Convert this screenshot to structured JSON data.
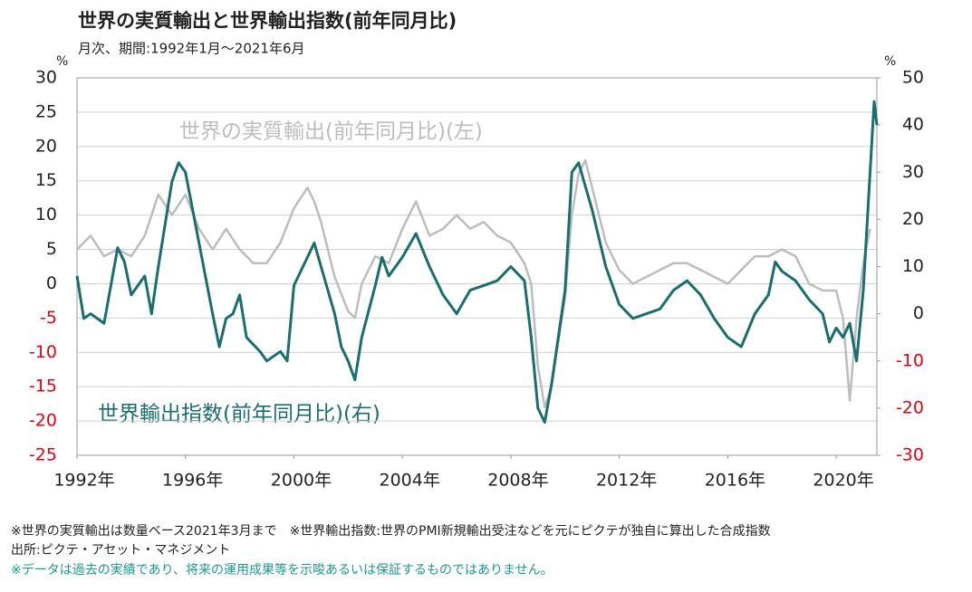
{
  "chart_data": {
    "type": "line",
    "title": "世界の実質輸出と世界輸出指数(前年同月比)",
    "subtitle": "月次、期間:1992年1月～2021年6月",
    "y_unit": "%",
    "y2_unit": "%",
    "xlim": [
      1992,
      2021.5
    ],
    "xticks": [
      {
        "value": 1992,
        "label": "1992年"
      },
      {
        "value": 1996,
        "label": "1996年"
      },
      {
        "value": 2000,
        "label": "2000年"
      },
      {
        "value": 2004,
        "label": "2004年"
      },
      {
        "value": 2008,
        "label": "2008年"
      },
      {
        "value": 2012,
        "label": "2012年"
      },
      {
        "value": 2016,
        "label": "2016年"
      },
      {
        "value": 2020,
        "label": "2020年"
      }
    ],
    "ylim": [
      -25,
      30
    ],
    "yticks": [
      30,
      25,
      20,
      15,
      10,
      5,
      0,
      -5,
      -10,
      -15,
      -20,
      -25
    ],
    "y2lim": [
      -30,
      50
    ],
    "y2ticks": [
      50,
      40,
      30,
      20,
      10,
      0,
      -10,
      -20,
      -30
    ],
    "negative_tick_color": "#e60012",
    "grid": true,
    "series": [
      {
        "name": "世界の実質輸出(前年同月比)(左)",
        "color": "#bdbdbd",
        "axis": "y",
        "x": [
          1992,
          1992.5,
          1993,
          1993.5,
          1994,
          1994.5,
          1995,
          1995.5,
          1996,
          1996.5,
          1997,
          1997.5,
          1998,
          1998.5,
          1999,
          1999.5,
          2000,
          2000.5,
          2000.75,
          2001,
          2001.5,
          2002,
          2002.25,
          2002.5,
          2003,
          2003.5,
          2004,
          2004.5,
          2005,
          2005.5,
          2006,
          2006.5,
          2007,
          2007.5,
          2008,
          2008.5,
          2008.75,
          2009,
          2009.25,
          2009.5,
          2010,
          2010.25,
          2010.5,
          2010.75,
          2011,
          2011.5,
          2012,
          2012.5,
          2013,
          2013.5,
          2014,
          2014.5,
          2015,
          2015.5,
          2016,
          2016.5,
          2017,
          2017.5,
          2018,
          2018.5,
          2019,
          2019.5,
          2020,
          2020.25,
          2020.5,
          2020.75,
          2021,
          2021.25
        ],
        "values": [
          5,
          7,
          4,
          5,
          4,
          7,
          13,
          10,
          13,
          8,
          5,
          8,
          5,
          3,
          3,
          6,
          11,
          14,
          12,
          9,
          1,
          -4,
          -5,
          0,
          4,
          3,
          8,
          12,
          7,
          8,
          10,
          8,
          9,
          7,
          6,
          3,
          0,
          -12,
          -18,
          -15,
          -2,
          10,
          16,
          18,
          14,
          6,
          2,
          0,
          1,
          2,
          3,
          3,
          2,
          1,
          0,
          2,
          4,
          4,
          5,
          4,
          0,
          -1,
          -1,
          -5,
          -17,
          -5,
          3,
          8
        ]
      },
      {
        "name": "世界輸出指数(前年同月比)(右)",
        "color": "#1a6e6e",
        "axis": "y2",
        "x": [
          1992,
          1992.25,
          1992.5,
          1993,
          1993.5,
          1993.75,
          1994,
          1994.5,
          1994.75,
          1995,
          1995.5,
          1995.75,
          1996,
          1996.5,
          1997,
          1997.25,
          1997.5,
          1997.75,
          1998,
          1998.25,
          1998.75,
          1999,
          1999.5,
          1999.75,
          2000,
          2000.5,
          2000.75,
          2001,
          2001.5,
          2001.75,
          2002,
          2002.25,
          2002.5,
          2003,
          2003.25,
          2003.5,
          2004,
          2004.5,
          2005,
          2005.5,
          2006,
          2006.5,
          2007,
          2007.5,
          2008,
          2008.5,
          2008.75,
          2009,
          2009.25,
          2009.5,
          2010,
          2010.25,
          2010.5,
          2011,
          2011.5,
          2012,
          2012.5,
          2013,
          2013.5,
          2014,
          2014.5,
          2015,
          2015.5,
          2016,
          2016.5,
          2017,
          2017.5,
          2017.75,
          2018,
          2018.5,
          2019,
          2019.5,
          2019.75,
          2020,
          2020.25,
          2020.5,
          2020.75,
          2021,
          2021.25,
          2021.4,
          2021.5
        ],
        "values": [
          8,
          -1,
          0,
          -2,
          14,
          11,
          4,
          8,
          0,
          10,
          28,
          32,
          30,
          15,
          0,
          -7,
          -1,
          0,
          4,
          -5,
          -8,
          -10,
          -8,
          -10,
          6,
          12,
          15,
          10,
          0,
          -7,
          -10,
          -14,
          -5,
          6,
          12,
          8,
          12,
          17,
          10,
          4,
          0,
          5,
          6,
          7,
          10,
          7,
          -5,
          -20,
          -23,
          -15,
          5,
          30,
          32,
          22,
          10,
          2,
          -1,
          0,
          1,
          5,
          7,
          4,
          -1,
          -5,
          -7,
          0,
          4,
          11,
          9,
          7,
          3,
          0,
          -6,
          -3,
          -5,
          -2,
          -10,
          5,
          30,
          45,
          40
        ]
      }
    ],
    "notes": [
      "※世界の実質輸出は数量ベース2021年3月まで　※世界輸出指数:世界のPMI新規輸出受注などを元にピクテが独自に算出した合成指数",
      "出所:ピクテ・アセット・マネジメント",
      "※データは過去の実績であり、将来の運用成果等を示唆あるいは保証するものではありません。"
    ]
  }
}
